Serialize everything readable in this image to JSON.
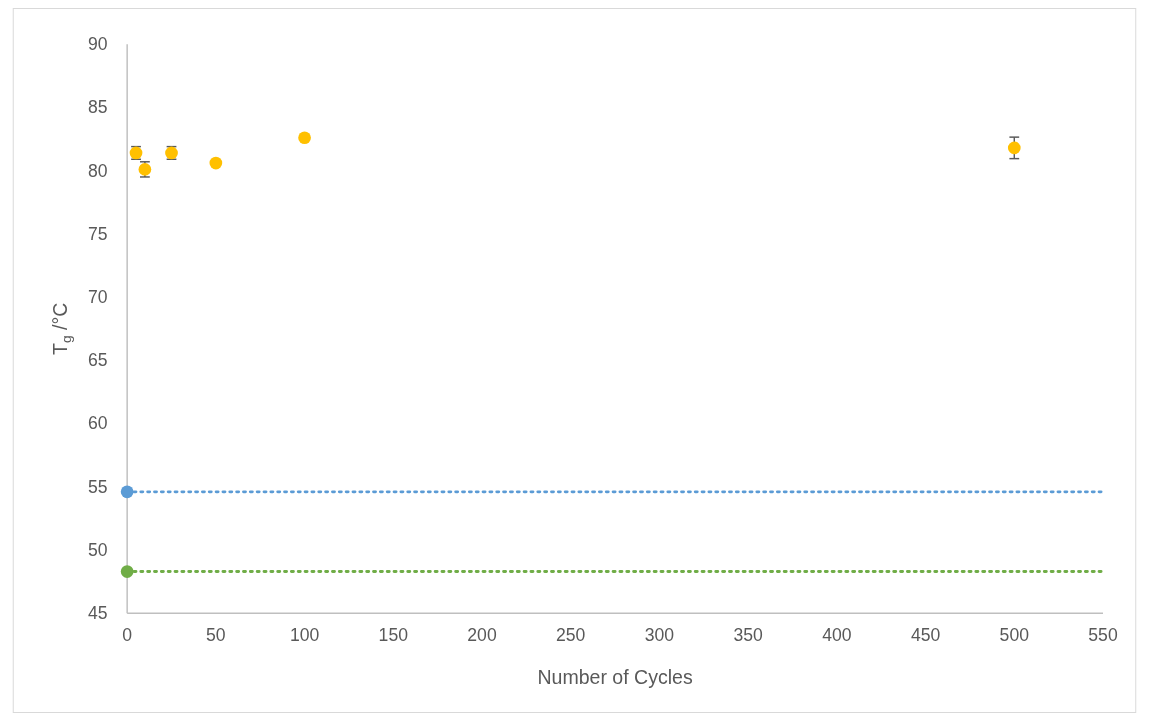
{
  "chart_data": {
    "type": "scatter",
    "xlabel": "Number of Cycles",
    "ylabel": "T$_{g}$ /°C",
    "xlim": [
      0,
      550
    ],
    "xticks": [
      0,
      50,
      100,
      150,
      200,
      250,
      300,
      350,
      400,
      450,
      500,
      550
    ],
    "ylim": [
      45,
      90
    ],
    "yticks": [
      45,
      50,
      55,
      60,
      65,
      70,
      75,
      80,
      85,
      90
    ],
    "grid": false,
    "marker": "circle",
    "series": [
      {
        "color": "#ffc000",
        "x": [
          5,
          10,
          25,
          50,
          100,
          500
        ],
        "values": [
          81.4,
          80.1,
          81.4,
          80.6,
          82.6,
          81.8
        ],
        "errors": [
          0.5,
          0.6,
          0.5,
          null,
          null,
          0.85
        ]
      },
      {
        "color": "#5b9bd5",
        "x": [
          0
        ],
        "values": [
          54.6
        ]
      },
      {
        "color": "#70ad47",
        "x": [
          0
        ],
        "values": [
          48.3
        ]
      }
    ],
    "ref_lines": [
      {
        "axis": "y",
        "value": 54.6,
        "color": "#5b9bd5",
        "line_style": "dotted"
      },
      {
        "axis": "y",
        "value": 48.3,
        "color": "#70ad47",
        "line_style": "dotted"
      }
    ]
  }
}
